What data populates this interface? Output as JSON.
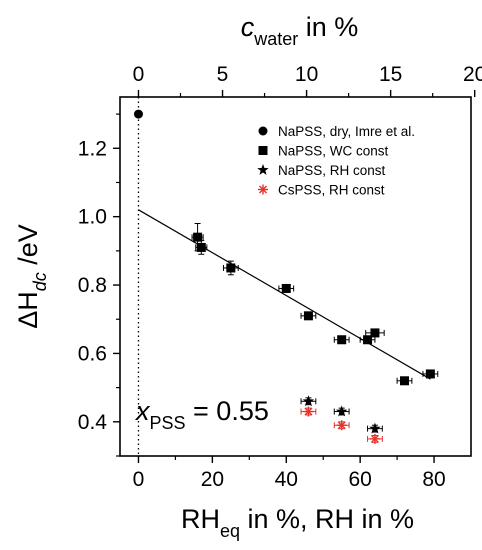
{
  "chart_data": {
    "type": "scatter",
    "xlabel": {
      "main": "RH",
      "sub": "eq",
      "rest": " in %, RH in %"
    },
    "ylabel": {
      "prefix": "ΔH",
      "sub": "dc",
      "rest": " /eV"
    },
    "top_xlabel": {
      "italic": "c",
      "sub": "water",
      "rest": " in %"
    },
    "xlim": [
      -5,
      90
    ],
    "ylim": [
      0.3,
      1.35
    ],
    "top_xlim": [
      0,
      20
    ],
    "x_ticks": [
      "0",
      "20",
      "40",
      "60",
      "80"
    ],
    "y_ticks": [
      "0.4",
      "0.6",
      "0.8",
      "1.0",
      "1.2"
    ],
    "top_ticks": [
      "0",
      "5",
      "10",
      "15",
      "20"
    ],
    "x_tick_values": [
      0,
      20,
      40,
      60,
      80
    ],
    "y_tick_values": [
      0.4,
      0.6,
      0.8,
      1.0,
      1.2
    ],
    "top_tick_values": [
      0,
      5,
      10,
      15,
      20
    ],
    "top_to_bottom_scale": 4.55,
    "grid": false,
    "legend_position": "top-right",
    "annotation": {
      "italic": "x",
      "sub": "PSS",
      "rest": " = 0.55"
    },
    "series": [
      {
        "name": "NaPSS, dry, Imre et al.",
        "marker": "circle",
        "color": "#000000",
        "points": [
          {
            "x": 0,
            "y": 1.3
          }
        ]
      },
      {
        "name": "NaPSS, WC const",
        "marker": "square",
        "color": "#000000",
        "points": [
          {
            "x": 16,
            "y": 0.94,
            "xerr": 1.5,
            "yerr": 0.04
          },
          {
            "x": 17,
            "y": 0.91,
            "xerr": 1.5,
            "yerr": 0.02
          },
          {
            "x": 25,
            "y": 0.85,
            "xerr": 2,
            "yerr": 0.02
          },
          {
            "x": 40,
            "y": 0.79,
            "xerr": 2,
            "yerr": 0.01
          },
          {
            "x": 46,
            "y": 0.71,
            "xerr": 2,
            "yerr": 0.01
          },
          {
            "x": 55,
            "y": 0.64,
            "xerr": 2,
            "yerr": 0.01
          },
          {
            "x": 62,
            "y": 0.64,
            "xerr": 2,
            "yerr": 0.01
          },
          {
            "x": 64,
            "y": 0.66,
            "xerr": 2.5,
            "yerr": 0.01
          },
          {
            "x": 72,
            "y": 0.52,
            "xerr": 2,
            "yerr": 0.01
          },
          {
            "x": 79,
            "y": 0.54,
            "xerr": 2,
            "yerr": 0.01
          }
        ]
      },
      {
        "name": "NaPSS, RH const",
        "marker": "star",
        "color": "#000000",
        "points": [
          {
            "x": 46,
            "y": 0.46,
            "xerr": 2,
            "yerr": 0.01
          },
          {
            "x": 55,
            "y": 0.43,
            "xerr": 2,
            "yerr": 0.01
          },
          {
            "x": 64,
            "y": 0.38,
            "xerr": 2,
            "yerr": 0.01
          }
        ]
      },
      {
        "name": "CsPSS, RH const",
        "marker": "asterisk",
        "color": "#e8302a",
        "points": [
          {
            "x": 46,
            "y": 0.43,
            "xerr": 2,
            "yerr": 0.01
          },
          {
            "x": 55,
            "y": 0.39,
            "xerr": 2,
            "yerr": 0.01
          },
          {
            "x": 64,
            "y": 0.35,
            "xerr": 2,
            "yerr": 0.01
          }
        ]
      }
    ],
    "fit_line": {
      "x": [
        0,
        79
      ],
      "y": [
        1.02,
        0.525
      ]
    },
    "reference_line": {
      "x": 0,
      "style": "dotted"
    }
  }
}
